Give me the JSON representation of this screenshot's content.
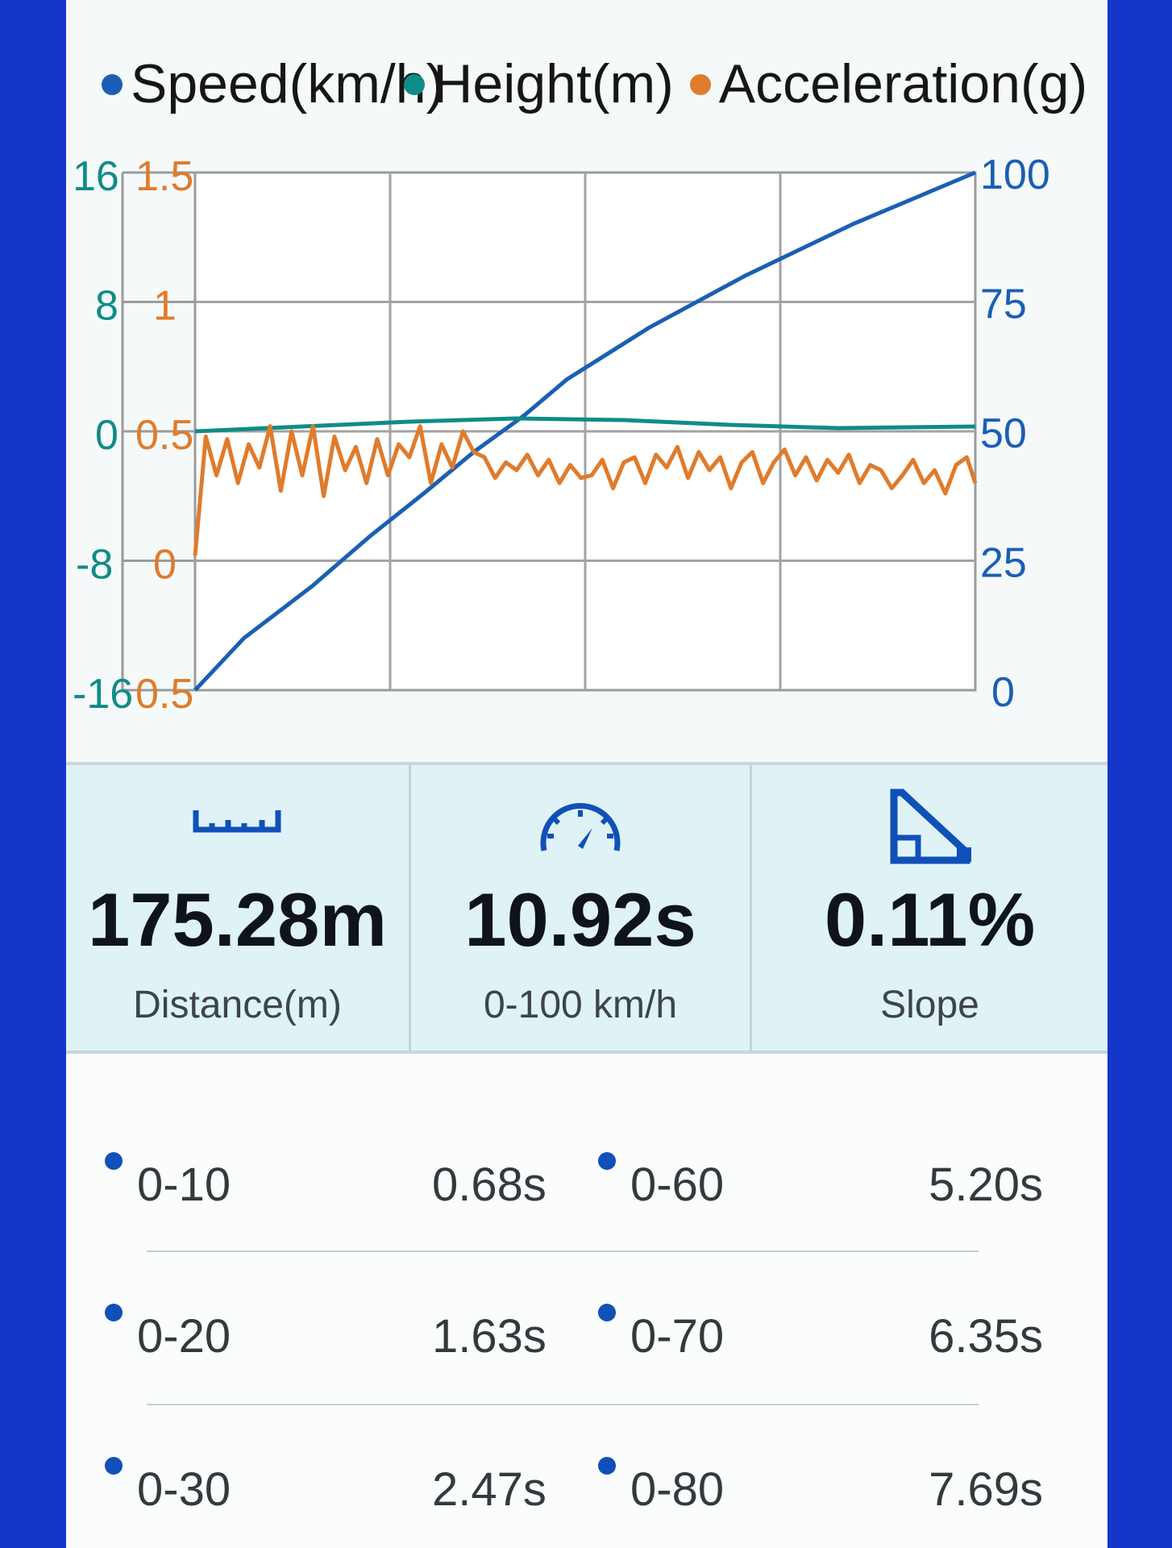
{
  "legend": [
    {
      "label": "Speed(km/h)",
      "color": "#1a5fb4"
    },
    {
      "label": "Height(m)",
      "color": "#0f8c87"
    },
    {
      "label": "Acceleration(g)",
      "color": "#e07b2b"
    }
  ],
  "chart_data": {
    "type": "line",
    "x_range": [
      0,
      10.92
    ],
    "axes": {
      "height_ticks": [
        "16",
        "8",
        "0",
        "-8",
        "-16"
      ],
      "acceleration_ticks": [
        "1.5",
        "1",
        "0.5",
        "0",
        "0.5"
      ],
      "speed_ticks": [
        "100",
        "75",
        "50",
        "25",
        "0"
      ],
      "height_range": [
        -16,
        16
      ],
      "acceleration_range": [
        -0.5,
        1.5
      ],
      "speed_range": [
        0,
        100
      ]
    },
    "grid": true,
    "series": [
      {
        "name": "Speed(km/h)",
        "axis": "speed",
        "color": "#1a5fb4",
        "x": [
          0,
          0.68,
          1.63,
          2.47,
          3.2,
          3.9,
          4.6,
          5.2,
          6.35,
          7.69,
          9.2,
          10.92
        ],
        "values": [
          0,
          10,
          20,
          30,
          38,
          46,
          53,
          60,
          70,
          80,
          90,
          100
        ]
      },
      {
        "name": "Height(m)",
        "axis": "height",
        "color": "#0f8c87",
        "x": [
          0,
          1.5,
          3.0,
          4.5,
          6.0,
          7.5,
          9.0,
          10.92
        ],
        "values": [
          0,
          0.3,
          0.6,
          0.8,
          0.7,
          0.4,
          0.2,
          0.3
        ]
      },
      {
        "name": "Acceleration(g)",
        "axis": "acceleration",
        "color": "#e07b2b",
        "x": [
          0,
          0.15,
          0.3,
          0.45,
          0.6,
          0.75,
          0.9,
          1.05,
          1.2,
          1.35,
          1.5,
          1.65,
          1.8,
          1.95,
          2.1,
          2.25,
          2.4,
          2.55,
          2.7,
          2.85,
          3.0,
          3.15,
          3.3,
          3.45,
          3.6,
          3.75,
          3.9,
          4.05,
          4.2,
          4.35,
          4.5,
          4.65,
          4.8,
          4.95,
          5.1,
          5.25,
          5.4,
          5.55,
          5.7,
          5.85,
          6.0,
          6.15,
          6.3,
          6.45,
          6.6,
          6.75,
          6.9,
          7.05,
          7.2,
          7.35,
          7.5,
          7.65,
          7.8,
          7.95,
          8.1,
          8.25,
          8.4,
          8.55,
          8.7,
          8.85,
          9.0,
          9.15,
          9.3,
          9.45,
          9.6,
          9.75,
          9.9,
          10.05,
          10.2,
          10.35,
          10.5,
          10.65,
          10.8,
          10.92
        ],
        "values": [
          0.02,
          0.48,
          0.33,
          0.47,
          0.3,
          0.45,
          0.36,
          0.52,
          0.27,
          0.5,
          0.33,
          0.52,
          0.25,
          0.48,
          0.35,
          0.44,
          0.3,
          0.47,
          0.33,
          0.45,
          0.4,
          0.52,
          0.3,
          0.45,
          0.36,
          0.5,
          0.42,
          0.4,
          0.32,
          0.38,
          0.35,
          0.41,
          0.33,
          0.39,
          0.3,
          0.37,
          0.32,
          0.33,
          0.39,
          0.28,
          0.38,
          0.4,
          0.3,
          0.41,
          0.36,
          0.44,
          0.32,
          0.42,
          0.35,
          0.4,
          0.28,
          0.38,
          0.42,
          0.3,
          0.38,
          0.43,
          0.33,
          0.4,
          0.31,
          0.39,
          0.34,
          0.41,
          0.3,
          0.37,
          0.35,
          0.28,
          0.33,
          0.39,
          0.3,
          0.35,
          0.26,
          0.37,
          0.4,
          0.3
        ]
      }
    ]
  },
  "stats": [
    {
      "icon": "ruler-icon",
      "value": "175.28m",
      "label": "Distance(m)"
    },
    {
      "icon": "speedometer-icon",
      "value": "10.92s",
      "label": "0-100 km/h"
    },
    {
      "icon": "slope-icon",
      "value": "0.11%",
      "label": "Slope"
    }
  ],
  "splits": [
    {
      "left_label": "0-10",
      "left_value": "0.68s",
      "right_label": "0-60",
      "right_value": "5.20s"
    },
    {
      "left_label": "0-20",
      "left_value": "1.63s",
      "right_label": "0-70",
      "right_value": "6.35s"
    },
    {
      "left_label": "0-30",
      "left_value": "2.47s",
      "right_label": "0-80",
      "right_value": "7.69s"
    }
  ],
  "colors": {
    "accent": "#1050b8",
    "panel": "#dff3f7",
    "frame": "#1537c9"
  }
}
